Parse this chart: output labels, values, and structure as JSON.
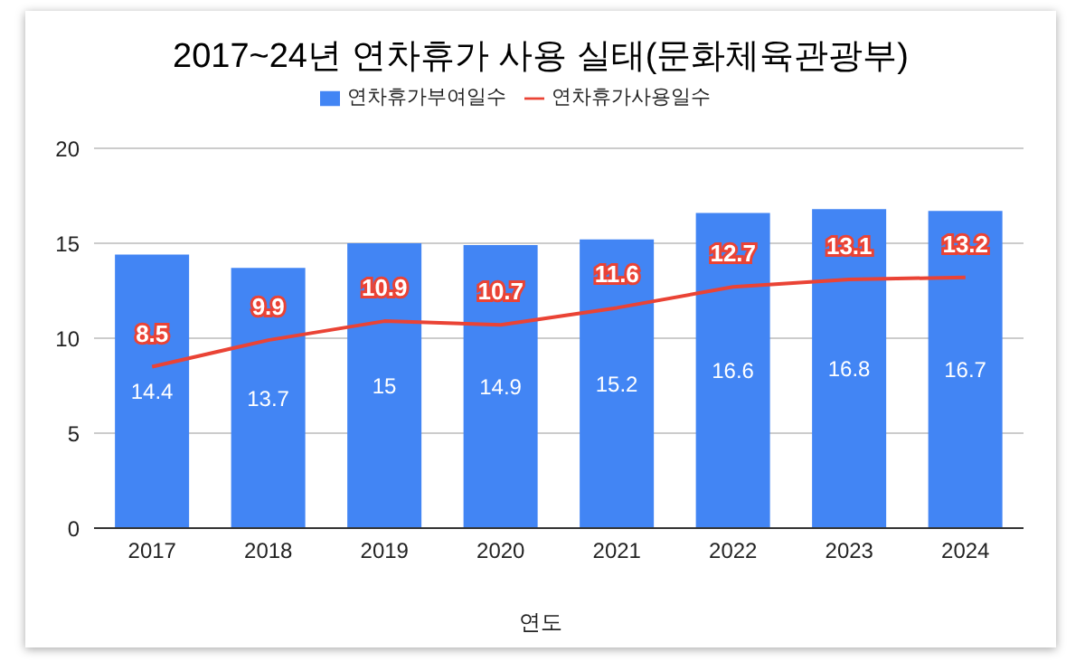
{
  "chart_data": {
    "type": "bar",
    "title": "2017~24년 연차휴가 사용 실태(문화체육관광부)",
    "xlabel": "연도",
    "categories": [
      "2017",
      "2018",
      "2019",
      "2020",
      "2021",
      "2022",
      "2023",
      "2024"
    ],
    "series": [
      {
        "name": "연차휴가부여일수",
        "color": "#4285f4",
        "values": [
          14.4,
          13.7,
          15,
          14.9,
          15.2,
          16.6,
          16.8,
          16.7
        ]
      },
      {
        "name": "연차휴가사용일수",
        "type": "line",
        "color": "#ea4335",
        "values": [
          8.5,
          9.9,
          10.9,
          10.7,
          11.6,
          12.7,
          13.1,
          13.2
        ]
      }
    ],
    "ylim": [
      0,
      20
    ],
    "yticks": [
      0,
      5,
      10,
      15,
      20
    ],
    "grid": "y",
    "legend": "top",
    "data_labels": true,
    "marker": "none"
  }
}
